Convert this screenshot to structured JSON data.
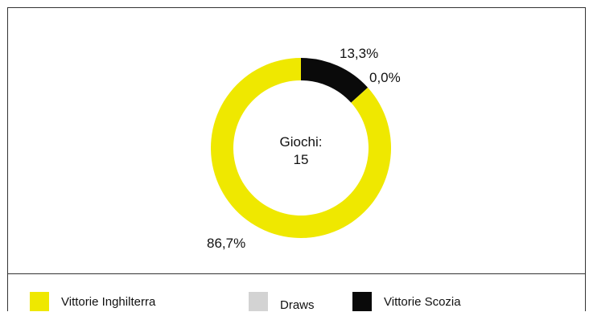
{
  "chart_data": {
    "type": "pie",
    "donut": true,
    "center_label": {
      "line1": "Giochi:",
      "line2": "15"
    },
    "slices": [
      {
        "name": "Vittorie Inghilterra",
        "value": 86.7,
        "label": "86,7%",
        "color": "#efe800"
      },
      {
        "name": "Draws",
        "value": 0.0,
        "label": "0,0%",
        "color": "#d3d3d3"
      },
      {
        "name": "Vittorie Scozia",
        "value": 13.3,
        "label": "13,3%",
        "color": "#0a0a0a"
      }
    ],
    "legend": {
      "placement": "bottom",
      "items": [
        {
          "label": "Vittorie Inghilterra",
          "color": "#efe800"
        },
        {
          "label": "Draws",
          "color": "#d3d3d3"
        },
        {
          "label": "Vittorie Scozia",
          "color": "#0a0a0a"
        }
      ]
    }
  }
}
